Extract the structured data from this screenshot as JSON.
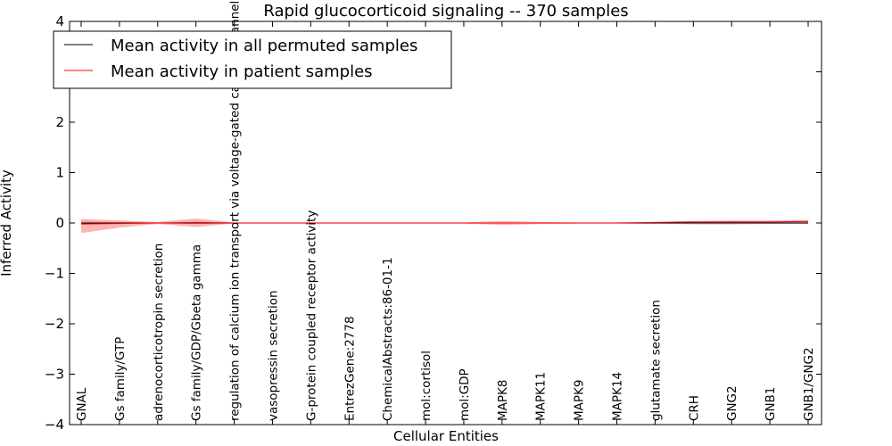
{
  "chart_data": {
    "type": "line",
    "title": "Rapid glucocorticoid signaling -- 370 samples",
    "xlabel": "Cellular Entities",
    "ylabel": "Inferred Activity",
    "ylim": [
      -4,
      4
    ],
    "yticks": [
      4,
      3,
      2,
      1,
      0,
      -1,
      -2,
      -3,
      -4
    ],
    "ytick_labels": [
      "4",
      "3",
      "2",
      "1",
      "0",
      "−1",
      "−2",
      "−3",
      "−4"
    ],
    "grid": false,
    "legend_position": "top-left",
    "categories": [
      "GNAL",
      "Gs family/GTP",
      "adrenocorticotropin secretion",
      "Gs family/GDP/Gbeta gamma",
      "regulation of calcium ion transport via voltage-gated calcium channel activity",
      "vasopressin secretion",
      "G-protein coupled receptor activity",
      "EntrezGene:2778",
      "ChemicalAbstracts:86-01-1",
      "mol:cortisol",
      "mol:GDP",
      "MAPK8",
      "MAPK11",
      "MAPK9",
      "MAPK14",
      "glutamate secretion",
      "CRH",
      "GNG2",
      "GNB1",
      "GNB1/GNG2"
    ],
    "series": [
      {
        "name": "Mean activity in all permuted samples",
        "color": "#000000",
        "values": [
          0,
          0,
          0,
          0,
          0,
          0,
          0,
          0,
          0,
          0,
          0,
          0,
          0,
          0,
          0,
          0,
          0,
          0,
          0,
          0
        ],
        "band_lower": [
          -0.02,
          -0.01,
          -0.01,
          -0.01,
          -0.01,
          -0.01,
          -0.01,
          -0.01,
          -0.01,
          -0.01,
          -0.01,
          -0.01,
          -0.01,
          -0.01,
          -0.01,
          -0.01,
          -0.03,
          -0.03,
          -0.02,
          -0.02
        ],
        "band_upper": [
          0.05,
          0.02,
          0.01,
          0.03,
          0.01,
          0.01,
          0.01,
          0.01,
          0.01,
          0.01,
          0.01,
          0.01,
          0.01,
          0.01,
          0.01,
          0.01,
          0.02,
          0.03,
          0.03,
          0.03
        ],
        "band_color": "#b0b0e0"
      },
      {
        "name": "Mean activity in patient samples",
        "color": "#ff0000",
        "values": [
          -0.02,
          -0.01,
          0,
          0.01,
          0,
          0,
          0,
          0,
          0,
          0,
          0,
          0,
          0,
          0,
          0,
          0.01,
          0.02,
          0.02,
          0.02,
          0.03
        ],
        "band_lower": [
          -0.2,
          -0.09,
          -0.02,
          -0.08,
          -0.01,
          -0.01,
          -0.01,
          -0.01,
          -0.01,
          -0.01,
          -0.01,
          -0.04,
          -0.02,
          -0.01,
          -0.01,
          -0.01,
          0,
          0,
          0,
          0.01
        ],
        "band_upper": [
          0.08,
          0.05,
          0.02,
          0.09,
          0.01,
          0.01,
          0.01,
          0.01,
          0.01,
          0.01,
          0.01,
          0.04,
          0.02,
          0.01,
          0.01,
          0.02,
          0.04,
          0.05,
          0.05,
          0.06
        ],
        "band_color": "#ff9999"
      }
    ]
  }
}
